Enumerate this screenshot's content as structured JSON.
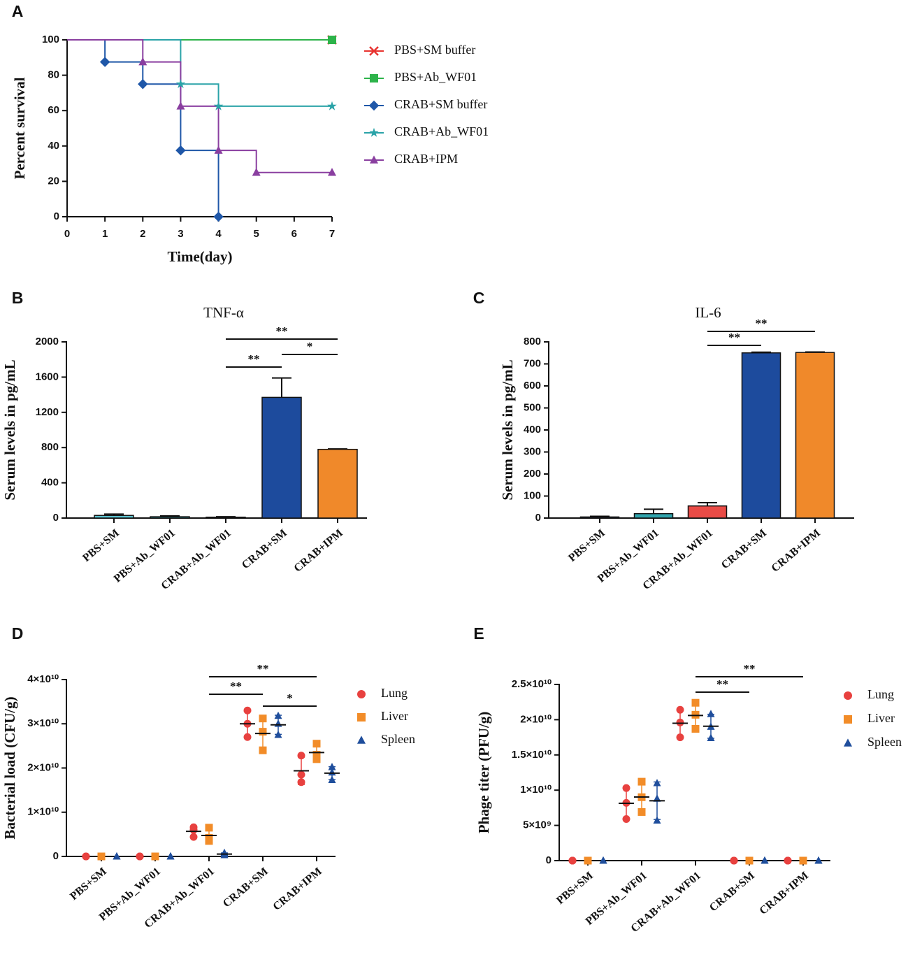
{
  "chart_data": [
    {
      "type": "step",
      "panel": "A",
      "ylabel": "Percent survival",
      "xlabel": "Time(day)",
      "xlim": [
        0,
        7
      ],
      "xticks": [
        0,
        1,
        2,
        3,
        4,
        5,
        6,
        7
      ],
      "ylim": [
        0,
        100
      ],
      "yticks": [
        0,
        20,
        40,
        60,
        80,
        100
      ],
      "series": [
        {
          "name": "PBS+SM buffer",
          "color": "#e8332f",
          "marker": "x",
          "x": [
            0,
            7
          ],
          "values": [
            100,
            100
          ]
        },
        {
          "name": "PBS+Ab_WF01",
          "color": "#2db34a",
          "marker": "square",
          "x": [
            0,
            7
          ],
          "values": [
            100,
            100
          ]
        },
        {
          "name": "CRAB+SM buffer",
          "color": "#1f57a8",
          "marker": "diamond",
          "x": [
            0,
            1,
            2,
            3,
            4
          ],
          "values": [
            100,
            87.5,
            75,
            37.5,
            0
          ]
        },
        {
          "name": "CRAB+Ab_WF01",
          "color": "#2aa3a8",
          "marker": "star",
          "x": [
            0,
            3,
            4,
            7
          ],
          "values": [
            100,
            75,
            62.5,
            62.5
          ]
        },
        {
          "name": "CRAB+IPM",
          "color": "#8a3fa0",
          "marker": "triangle",
          "x": [
            0,
            2,
            3,
            4,
            5,
            7
          ],
          "values": [
            100,
            87.5,
            62.5,
            37.5,
            25,
            25
          ]
        }
      ]
    },
    {
      "type": "bar",
      "panel": "B",
      "title": "TNF-α",
      "ylabel": "Serum levels in pg/mL",
      "categories": [
        "PBS+SM",
        "PBS+Ab_WF01",
        "CRAB+Ab_WF01",
        "CRAB+SM",
        "CRAB+IPM"
      ],
      "values": [
        30,
        15,
        10,
        1370,
        780
      ],
      "errors": [
        15,
        10,
        5,
        220,
        5
      ],
      "colors": [
        "#5bc2cf",
        "#2fa4ad",
        "#e94b46",
        "#1d4b9d",
        "#f0892a"
      ],
      "ylim": [
        0,
        2000
      ],
      "yticks": [
        0,
        400,
        800,
        1200,
        1600,
        2000
      ],
      "annotations": [
        {
          "between": [
            "CRAB+Ab_WF01",
            "CRAB+SM"
          ],
          "label": "**"
        },
        {
          "between": [
            "CRAB+Ab_WF01",
            "CRAB+IPM"
          ],
          "label": "**"
        },
        {
          "between": [
            "CRAB+SM",
            "CRAB+IPM"
          ],
          "label": "*"
        }
      ]
    },
    {
      "type": "bar",
      "panel": "C",
      "title": "IL-6",
      "ylabel": "Serum levels in pg/mL",
      "categories": [
        "PBS+SM",
        "PBS+Ab_WF01",
        "CRAB+Ab_WF01",
        "CRAB+SM",
        "CRAB+IPM"
      ],
      "values": [
        5,
        20,
        55,
        750,
        752
      ],
      "errors": [
        3,
        20,
        15,
        3,
        2
      ],
      "colors": [
        "#1d4b9d",
        "#2fa4ad",
        "#e94b46",
        "#1d4b9d",
        "#f0892a"
      ],
      "ylim": [
        0,
        800
      ],
      "yticks": [
        0,
        100,
        200,
        300,
        400,
        500,
        600,
        700,
        800
      ],
      "annotations": [
        {
          "between": [
            "CRAB+Ab_WF01",
            "CRAB+SM"
          ],
          "label": "**"
        },
        {
          "between": [
            "CRAB+Ab_WF01",
            "CRAB+IPM"
          ],
          "label": "**"
        }
      ]
    },
    {
      "type": "dot",
      "panel": "D",
      "ylabel": "Bacterial load (CFU/g)",
      "categories": [
        "PBS+SM",
        "PBS+Ab_WF01",
        "CRAB+Ab_WF01",
        "CRAB+SM",
        "CRAB+IPM"
      ],
      "ylim": [
        0,
        40000000000
      ],
      "yticks": [
        0,
        {
          "value": 10000000000,
          "label": "1×10¹⁰"
        },
        {
          "value": 20000000000,
          "label": "2×10¹⁰"
        },
        {
          "value": 30000000000,
          "label": "3×10¹⁰"
        },
        {
          "value": 40000000000,
          "label": "4×10¹⁰"
        }
      ],
      "series": [
        {
          "name": "Lung",
          "color": "#e8413f",
          "marker": "circle",
          "values": [
            [
              0,
              0,
              0
            ],
            [
              0,
              0,
              0
            ],
            [
              6600000000,
              6000000000,
              4400000000
            ],
            [
              33000000000,
              30000000000,
              27000000000
            ],
            [
              22800000000,
              18500000000,
              16800000000
            ]
          ]
        },
        {
          "name": "Liver",
          "color": "#f28c28",
          "marker": "square",
          "values": [
            [
              0,
              0,
              0
            ],
            [
              0,
              0,
              0
            ],
            [
              6500000000,
              4200000000,
              3500000000
            ],
            [
              31200000000,
              28200000000,
              24000000000
            ],
            [
              25500000000,
              23000000000,
              22000000000
            ]
          ]
        },
        {
          "name": "Spleen",
          "color": "#1f4e9c",
          "marker": "triangle",
          "values": [
            [
              0,
              0,
              0
            ],
            [
              0,
              0,
              0
            ],
            [
              800000000,
              500000000,
              300000000
            ],
            [
              31800000000,
              30000000000,
              27500000000
            ],
            [
              20200000000,
              19000000000,
              17300000000
            ]
          ]
        }
      ],
      "annotations": [
        {
          "between": [
            "CRAB+Ab_WF01",
            "CRAB+SM"
          ],
          "label": "**"
        },
        {
          "between": [
            "CRAB+Ab_WF01",
            "CRAB+IPM"
          ],
          "label": "**"
        },
        {
          "between": [
            "CRAB+SM",
            "CRAB+IPM"
          ],
          "label": "*"
        }
      ]
    },
    {
      "type": "dot",
      "panel": "E",
      "ylabel": "Phage titer (PFU/g)",
      "categories": [
        "PBS+SM",
        "PBS+Ab_WF01",
        "CRAB+Ab_WF01",
        "CRAB+SM",
        "CRAB+IPM"
      ],
      "ylim": [
        0,
        25000000000
      ],
      "yticks": [
        0,
        {
          "value": 5000000000,
          "label": "5×10⁹"
        },
        {
          "value": 10000000000,
          "label": "1×10¹⁰"
        },
        {
          "value": 15000000000,
          "label": "1.5×10¹⁰"
        },
        {
          "value": 20000000000,
          "label": "2×10¹⁰"
        },
        {
          "value": 25000000000,
          "label": "2.5×10¹⁰"
        }
      ],
      "series": [
        {
          "name": "Lung",
          "color": "#e8413f",
          "marker": "circle",
          "values": [
            [
              0,
              0,
              0
            ],
            [
              10300000000,
              8200000000,
              5900000000
            ],
            [
              21400000000,
              19600000000,
              17500000000
            ],
            [
              0,
              0,
              0
            ],
            [
              0,
              0,
              0
            ]
          ]
        },
        {
          "name": "Liver",
          "color": "#f28c28",
          "marker": "square",
          "values": [
            [
              0,
              0,
              0
            ],
            [
              11200000000,
              9000000000,
              6900000000
            ],
            [
              22400000000,
              20700000000,
              18700000000
            ],
            [
              0,
              0,
              0
            ],
            [
              0,
              0,
              0
            ]
          ]
        },
        {
          "name": "Spleen",
          "color": "#1f4e9c",
          "marker": "triangle",
          "values": [
            [
              0,
              0,
              0
            ],
            [
              11000000000,
              8800000000,
              5700000000
            ],
            [
              20800000000,
              19000000000,
              17400000000
            ],
            [
              0,
              0,
              0
            ],
            [
              0,
              0,
              0
            ]
          ]
        }
      ],
      "annotations": [
        {
          "between": [
            "CRAB+Ab_WF01",
            "CRAB+SM"
          ],
          "label": "**"
        },
        {
          "between": [
            "CRAB+Ab_WF01",
            "CRAB+IPM"
          ],
          "label": "**"
        }
      ]
    }
  ]
}
